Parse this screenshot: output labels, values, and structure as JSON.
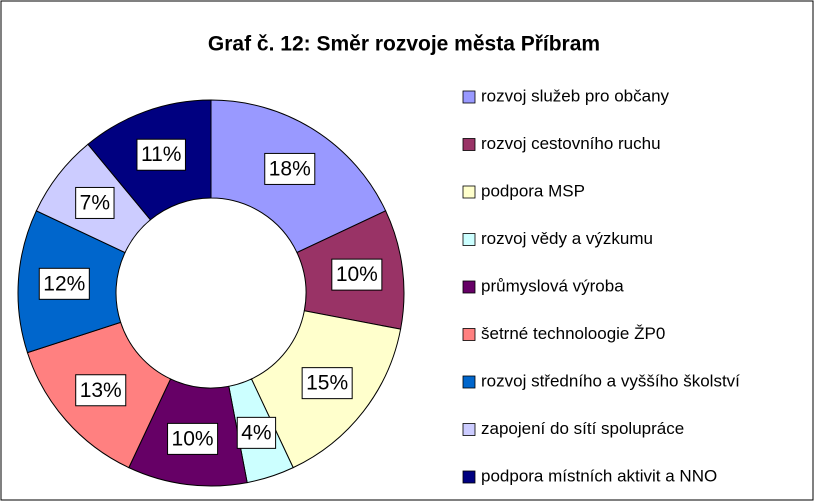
{
  "chart_data": {
    "type": "donut",
    "title": "Graf č. 12: Směr rozvoje města Příbram",
    "categories": [
      "rozvoj služeb pro občany",
      "rozvoj cestovního ruchu",
      "podpora MSP",
      "rozvoj vědy a výzkumu",
      "průmyslová výroba",
      "šetrné technoloogie ŽP0",
      "rozvoj středního a vyššího školství",
      "zapojení do sítí spolupráce",
      "podpora místních aktivit a NNO"
    ],
    "values": [
      18,
      10,
      15,
      4,
      10,
      13,
      12,
      7,
      11
    ],
    "value_labels": [
      "18%",
      "10%",
      "15%",
      "4%",
      "10%",
      "13%",
      "12%",
      "7%",
      "11%"
    ],
    "colors": [
      "#9999ff",
      "#993366",
      "#ffffcc",
      "#ccffff",
      "#660066",
      "#ff8080",
      "#0066cc",
      "#ccccff",
      "#000080"
    ],
    "legend": "right"
  }
}
